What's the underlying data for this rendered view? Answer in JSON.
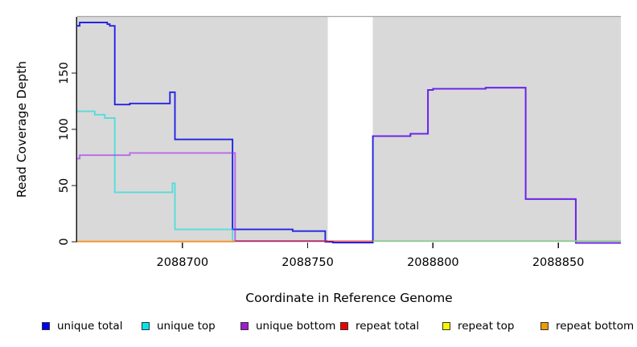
{
  "chart_data": {
    "type": "line",
    "subtype": "step-coverage-plot",
    "title": "",
    "xlabel": "Coordinate in Reference Genome",
    "ylabel": "Read Coverage Depth",
    "x_axis": {
      "min": 2088658,
      "max": 2088875,
      "ticks": [
        2088700,
        2088750,
        2088800,
        2088850
      ],
      "tick_labels": [
        "2088700",
        "2088750",
        "2088800",
        "2088850"
      ]
    },
    "y_axis": {
      "min": 0,
      "max": 200,
      "ticks": [
        0,
        50,
        100,
        150
      ],
      "tick_labels": [
        "0",
        "50",
        "100",
        "150"
      ]
    },
    "plot_background": "#d9d9d9",
    "plot_top_border_color": "#a6a6a6",
    "axis_color": "#1a1a1a",
    "coverage_gap": {
      "from": 2088758,
      "to": 2088776
    },
    "series": [
      {
        "name": "unique total",
        "legend_color": "#0000EE",
        "render_color": "#2323e6",
        "opacity": 1,
        "segments": [
          {
            "points": [
              [
                2088658,
                192
              ],
              [
                2088659,
                195
              ],
              [
                2088670,
                193.5
              ],
              [
                2088671,
                192
              ],
              [
                2088673,
                122
              ],
              [
                2088679,
                123
              ],
              [
                2088695,
                133
              ],
              [
                2088697,
                91
              ],
              [
                2088720,
                11
              ],
              [
                2088744,
                9.5
              ],
              [
                2088757,
                0
              ],
              [
                2088760,
                -0.7
              ],
              [
                2088776,
                94
              ],
              [
                2088791,
                96
              ],
              [
                2088798,
                135
              ],
              [
                2088800,
                136
              ],
              [
                2088821,
                137
              ],
              [
                2088837,
                38
              ],
              [
                2088857,
                -1
              ]
            ],
            "end": 2088875
          }
        ]
      },
      {
        "name": "unique top",
        "legend_color": "#00E5EE",
        "render_color": "#00dede",
        "opacity": 0.6,
        "segments": [
          {
            "points": [
              [
                2088658,
                116
              ],
              [
                2088665,
                113
              ],
              [
                2088669,
                110
              ],
              [
                2088673,
                44
              ],
              [
                2088696,
                52
              ],
              [
                2088697,
                11
              ],
              [
                2088720,
                0.6
              ]
            ],
            "end": 2088758
          }
        ]
      },
      {
        "name": "unique bottom",
        "legend_color": "#A01CD0",
        "render_color": "#a020f0",
        "opacity": 0.6,
        "segments": [
          {
            "points": [
              [
                2088658,
                74
              ],
              [
                2088659,
                77
              ],
              [
                2088679,
                79
              ],
              [
                2088721,
                0.6
              ]
            ],
            "end": 2088758
          },
          {
            "points": [
              [
                2088776,
                94
              ],
              [
                2088791,
                96
              ],
              [
                2088798,
                135
              ],
              [
                2088800,
                136
              ],
              [
                2088821,
                137
              ],
              [
                2088837,
                38
              ],
              [
                2088857,
                -1
              ]
            ],
            "end": 2088875
          }
        ]
      },
      {
        "name": "repeat total",
        "legend_color": "#EE0000",
        "render_color": "#ee0000",
        "opacity": 0.55,
        "segments": [
          {
            "points": [
              [
                2088721,
                0.6
              ]
            ],
            "end": 2088776
          }
        ]
      },
      {
        "name": "repeat top",
        "legend_color": "#F5F500",
        "render_color": "#8fca92",
        "opacity": 1,
        "segments": [
          {
            "points": [
              [
                2088776,
                0.6
              ]
            ],
            "end": 2088875
          }
        ]
      },
      {
        "name": "repeat bottom",
        "legend_color": "#EE9A00",
        "render_color": "#f5921e",
        "opacity": 1,
        "segments": [
          {
            "points": [
              [
                2088658,
                0.2
              ]
            ],
            "end": 2088721
          }
        ]
      }
    ]
  }
}
